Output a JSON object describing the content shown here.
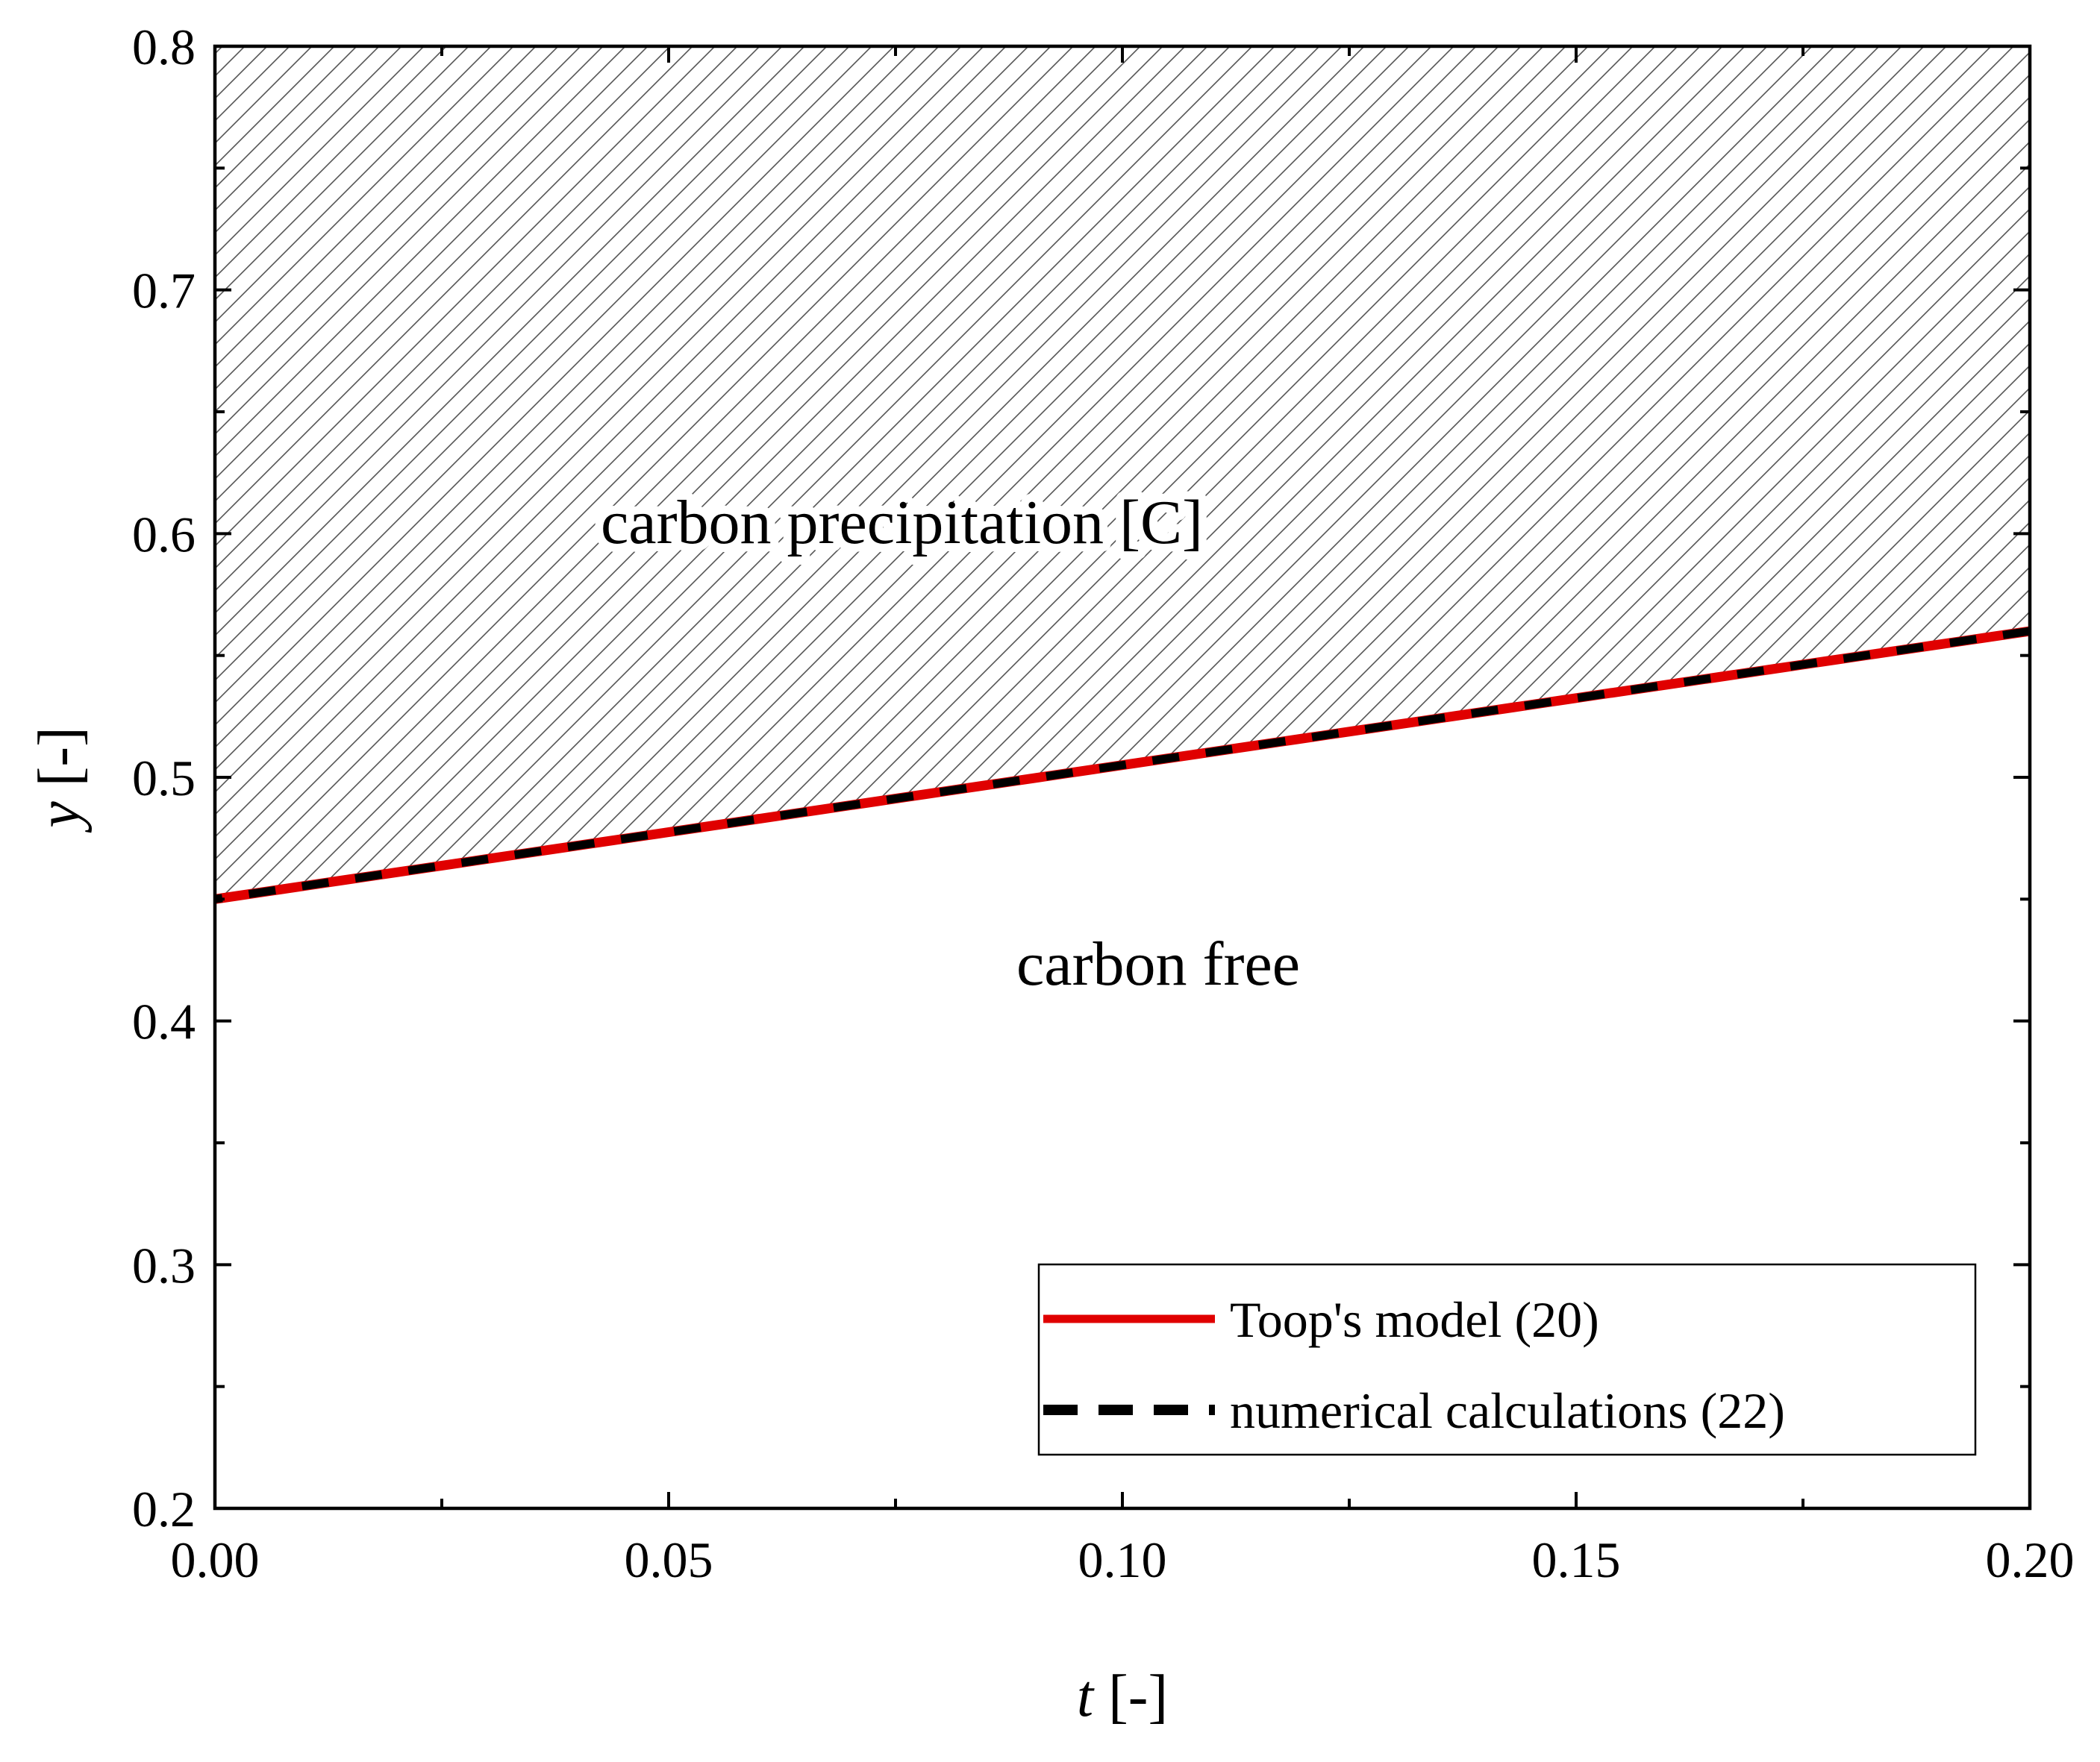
{
  "chart_data": {
    "type": "line",
    "xlabel_var": "t",
    "xlabel_unit": "[-]",
    "ylabel_var": "y",
    "ylabel_unit": "[-]",
    "xlim": [
      0.0,
      0.2
    ],
    "ylim": [
      0.2,
      0.8
    ],
    "x_ticks": [
      0.0,
      0.05,
      0.1,
      0.15,
      0.2
    ],
    "x_tick_labels": [
      "0.00",
      "0.05",
      "0.10",
      "0.15",
      "0.20"
    ],
    "y_ticks": [
      0.2,
      0.3,
      0.4,
      0.5,
      0.6,
      0.7,
      0.8
    ],
    "y_tick_labels": [
      "0.2",
      "0.3",
      "0.4",
      "0.5",
      "0.6",
      "0.7",
      "0.8"
    ],
    "x_minor_step": 0.025,
    "y_minor_step": 0.05,
    "grid": false,
    "legend_position": "bottom-right",
    "series": [
      {
        "name": "Toop's model (20)",
        "style": "solid",
        "color": "#e00000",
        "x": [
          0.0,
          0.2
        ],
        "y": [
          0.45,
          0.56
        ]
      },
      {
        "name": "numerical calculations (22)",
        "style": "dashed",
        "color": "#000000",
        "x": [
          0.0,
          0.2
        ],
        "y": [
          0.45,
          0.56
        ]
      }
    ],
    "region_labels": {
      "upper": "carbon precipitation [C]",
      "lower": "carbon free"
    }
  }
}
